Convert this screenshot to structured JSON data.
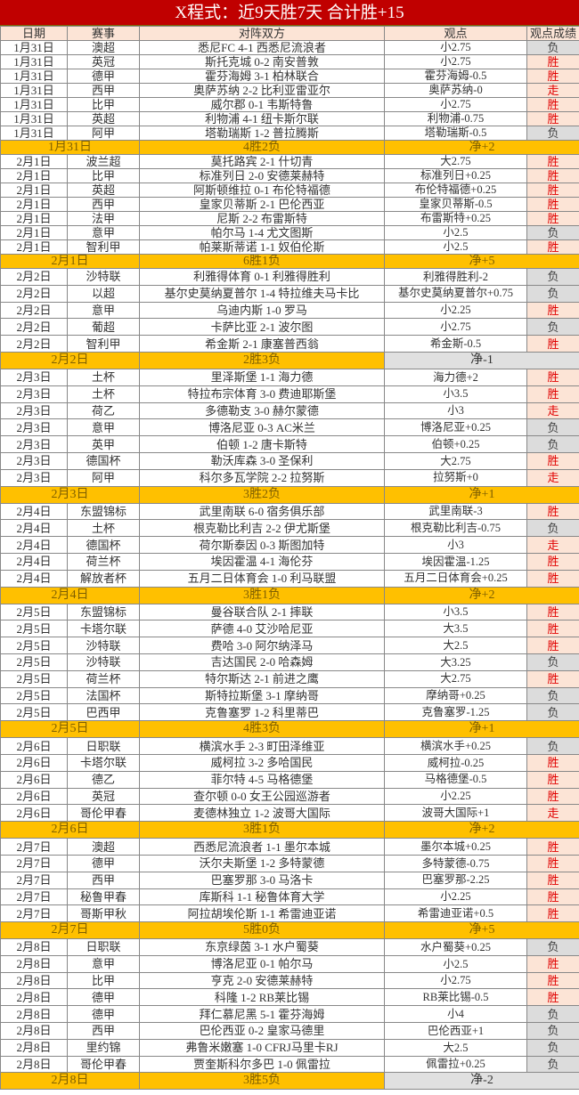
{
  "title": "X程式：近9天胜7天 合计胜+15",
  "headers": [
    "日期",
    "赛事",
    "对阵双方",
    "观点",
    "观点成绩"
  ],
  "colors": {
    "title_bg": "#c00000",
    "header_bg": "#fce4d6",
    "summary_bg": "#ffc000",
    "win_bg": "#fce4d6",
    "win_text": "#e00000",
    "loss_bg": "#dcdcdc"
  },
  "groups": [
    {
      "matches": [
        [
          "1月31日",
          "澳超",
          "悉尼FC 4-1 西悉尼流浪者",
          "小2.75",
          "负"
        ],
        [
          "1月31日",
          "英冠",
          "斯托克城 0-2 南安普敦",
          "小2.75",
          "胜"
        ],
        [
          "1月31日",
          "德甲",
          "霍芬海姆 3-1 柏林联合",
          "霍芬海姆-0.5",
          "胜"
        ],
        [
          "1月31日",
          "西甲",
          "奥萨苏纳 2-2 比利亚雷亚尔",
          "奥萨苏纳-0",
          "走"
        ],
        [
          "1月31日",
          "比甲",
          "威尔郡 0-1 韦斯特鲁",
          "小2.75",
          "胜"
        ],
        [
          "1月31日",
          "英超",
          "利物浦 4-1 纽卡斯尔联",
          "利物浦-0.75",
          "胜"
        ],
        [
          "1月31日",
          "阿甲",
          "塔勒瑞斯 1-2 普拉腾斯",
          "塔勒瑞斯-0.5",
          "负"
        ]
      ],
      "summary": {
        "date": "1月31日",
        "record": "4胜2负",
        "net": "净+2"
      }
    },
    {
      "matches": [
        [
          "2月1日",
          "波兰超",
          "莫托路宾 2-1 什切青",
          "大2.75",
          "胜"
        ],
        [
          "2月1日",
          "比甲",
          "标准列日 2-0 安德莱赫特",
          "标准列日+0.25",
          "胜"
        ],
        [
          "2月1日",
          "英超",
          "阿斯顿维拉 0-1 布伦特福德",
          "布伦特福德+0.25",
          "胜"
        ],
        [
          "2月1日",
          "西甲",
          "皇家贝蒂斯 2-1 巴伦西亚",
          "皇家贝蒂斯-0.5",
          "胜"
        ],
        [
          "2月1日",
          "法甲",
          "尼斯 2-2 布雷斯特",
          "布雷斯特+0.25",
          "胜"
        ],
        [
          "2月1日",
          "意甲",
          "帕尔马 1-4 尤文图斯",
          "小2.5",
          "负"
        ],
        [
          "2月1日",
          "智利甲",
          "帕莱斯蒂诺 1-1 奴伯伦斯",
          "小2.5",
          "胜"
        ]
      ],
      "summary": {
        "date": "2月1日",
        "record": "6胜1负",
        "net": "净+5"
      }
    },
    {
      "matches": [
        [
          "2月2日",
          "沙特联",
          "利雅得体育 0-1 利雅得胜利",
          "利雅得胜利-2",
          "负"
        ],
        [
          "2月2日",
          "以超",
          "基尔史莫纳夏普尔 1-4 特拉维夫马卡比",
          "基尔史莫纳夏普尔+0.75",
          "负"
        ],
        [
          "2月2日",
          "意甲",
          "乌迪内斯 1-0 罗马",
          "小2.25",
          "胜"
        ],
        [
          "2月2日",
          "葡超",
          "卡萨比亚 2-1 波尔图",
          "小2.75",
          "负"
        ],
        [
          "2月2日",
          "智利甲",
          "希金斯 2-1 康塞普西翁",
          "希金斯-0.5",
          "胜"
        ]
      ],
      "summary": {
        "date": "2月2日",
        "record": "2胜3负",
        "net": "净-1"
      }
    },
    {
      "matches": [
        [
          "2月3日",
          "土杯",
          "里泽斯堡 1-1 海力德",
          "海力德+2",
          "胜"
        ],
        [
          "2月3日",
          "土杯",
          "特拉布宗体育 3-0 费迪耶斯堡",
          "小3.5",
          "胜"
        ],
        [
          "2月3日",
          "荷乙",
          "多德勒支 3-0 赫尔蒙德",
          "小3",
          "走"
        ],
        [
          "2月3日",
          "意甲",
          "博洛尼亚 0-3 AC米兰",
          "博洛尼亚+0.25",
          "负"
        ],
        [
          "2月3日",
          "英甲",
          "伯顿 1-2 唐卡斯特",
          "伯顿+0.25",
          "负"
        ],
        [
          "2月3日",
          "德国杯",
          "勒沃库森 3-0 圣保利",
          "大2.75",
          "胜"
        ],
        [
          "2月3日",
          "阿甲",
          "科尔多瓦学院 2-2 拉努斯",
          "拉努斯+0",
          "走"
        ]
      ],
      "summary": {
        "date": "2月3日",
        "record": "3胜2负",
        "net": "净+1"
      }
    },
    {
      "matches": [
        [
          "2月4日",
          "东盟锦标",
          "武里南联 6-0 宿务俱乐部",
          "武里南联-3",
          "胜"
        ],
        [
          "2月4日",
          "土杯",
          "根克勒比利吉 2-2 伊尤斯堡",
          "根克勒比利吉-0.75",
          "负"
        ],
        [
          "2月4日",
          "德国杯",
          "荷尔斯泰因 0-3 斯图加特",
          "小3",
          "走"
        ],
        [
          "2月4日",
          "荷兰杯",
          "埃因霍温 4-1 海伦芬",
          "埃因霍温-1.25",
          "胜"
        ],
        [
          "2月4日",
          "解放者杯",
          "五月二日体育会 1-0 利马联盟",
          "五月二日体育会+0.25",
          "胜"
        ]
      ],
      "summary": {
        "date": "2月4日",
        "record": "3胜1负",
        "net": "净+2"
      }
    },
    {
      "matches": [
        [
          "2月5日",
          "东盟锦标",
          "曼谷联合队 2-1 摔联",
          "小3.5",
          "胜"
        ],
        [
          "2月5日",
          "卡塔尔联",
          "萨德 4-0 艾沙哈尼亚",
          "大3.5",
          "胜"
        ],
        [
          "2月5日",
          "沙特联",
          "费哈 3-0 阿尔纳泽马",
          "大2.5",
          "胜"
        ],
        [
          "2月5日",
          "沙特联",
          "吉达国民 2-0 哈森姆",
          "大3.25",
          "负"
        ],
        [
          "2月5日",
          "荷兰杯",
          "特尔斯达 2-1 前进之鹰",
          "大2.75",
          "胜"
        ],
        [
          "2月5日",
          "法国杯",
          "斯特拉斯堡 3-1 摩纳哥",
          "摩纳哥+0.25",
          "负"
        ],
        [
          "2月5日",
          "巴西甲",
          "克鲁塞罗 1-2 科里蒂巴",
          "克鲁塞罗-1.25",
          "负"
        ]
      ],
      "summary": {
        "date": "2月5日",
        "record": "4胜3负",
        "net": "净+1"
      }
    },
    {
      "matches": [
        [
          "2月6日",
          "日职联",
          "横滨水手 2-3 町田泽维亚",
          "横滨水手+0.25",
          "负"
        ],
        [
          "2月6日",
          "卡塔尔联",
          "威柯拉 3-2 多哈国民",
          "威柯拉-0.25",
          "胜"
        ],
        [
          "2月6日",
          "德乙",
          "菲尔特 4-5 马格德堡",
          "马格德堡-0.5",
          "胜"
        ],
        [
          "2月6日",
          "英冠",
          "查尔顿 0-0 女王公园巡游者",
          "小2.25",
          "胜"
        ],
        [
          "2月6日",
          "哥伦甲春",
          "麦德林独立 1-2 波哥大国际",
          "波哥大国际+1",
          "走"
        ]
      ],
      "summary": {
        "date": "2月6日",
        "record": "3胜1负",
        "net": "净+2"
      }
    },
    {
      "matches": [
        [
          "2月7日",
          "澳超",
          "西悉尼流浪者 1-1 墨尔本城",
          "墨尔本城+0.25",
          "胜"
        ],
        [
          "2月7日",
          "德甲",
          "沃尔夫斯堡 1-2 多特蒙德",
          "多特蒙德-0.75",
          "胜"
        ],
        [
          "2月7日",
          "西甲",
          "巴塞罗那 3-0 马洛卡",
          "巴塞罗那-2.25",
          "胜"
        ],
        [
          "2月7日",
          "秘鲁甲春",
          "库斯科 1-1 秘鲁体育大学",
          "小2.25",
          "胜"
        ],
        [
          "2月7日",
          "哥斯甲秋",
          "阿拉胡埃伦斯 1-1 希雷迪亚诺",
          "希雷迪亚诺+0.5",
          "胜"
        ]
      ],
      "summary": {
        "date": "2月7日",
        "record": "5胜0负",
        "net": "净+5"
      }
    },
    {
      "matches": [
        [
          "2月8日",
          "日职联",
          "东京绿茵 3-1 水户蜀葵",
          "水户蜀葵+0.25",
          "负"
        ],
        [
          "2月8日",
          "意甲",
          "博洛尼亚 0-1 帕尔马",
          "小2.5",
          "胜"
        ],
        [
          "2月8日",
          "比甲",
          "亨克 2-0 安德莱赫特",
          "小2.75",
          "胜"
        ],
        [
          "2月8日",
          "德甲",
          "科隆 1-2 RB莱比锡",
          "RB莱比锡-0.5",
          "胜"
        ],
        [
          "2月8日",
          "德甲",
          "拜仁慕尼黑 5-1 霍芬海姆",
          "小4",
          "负"
        ],
        [
          "2月8日",
          "西甲",
          "巴伦西亚 0-2 皇家马德里",
          "巴伦西亚+1",
          "负"
        ],
        [
          "2月8日",
          "里约锦",
          "弗鲁米嫩塞 1-0 CFRJ马里卡RJ",
          "大2.5",
          "负"
        ],
        [
          "2月8日",
          "哥伦甲春",
          "贾奎斯科尔多巴 1-0 佩雷拉",
          "佩雷拉+0.25",
          "负"
        ]
      ],
      "summary": {
        "date": "2月8日",
        "record": "3胜5负",
        "net": "净-2"
      }
    }
  ]
}
